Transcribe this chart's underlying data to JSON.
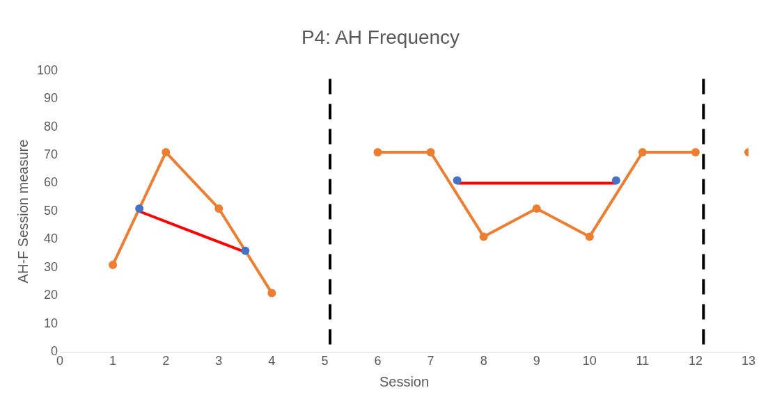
{
  "chart_data": {
    "type": "line",
    "title": "P4: AH Frequency",
    "xlabel": "Session",
    "ylabel": "AH-F Session measure",
    "xlim": [
      0,
      13
    ],
    "xticks": [
      0,
      1,
      2,
      3,
      4,
      5,
      6,
      7,
      8,
      9,
      10,
      11,
      12,
      13
    ],
    "ylim": [
      0,
      100
    ],
    "yticks": [
      0,
      10,
      20,
      30,
      40,
      50,
      60,
      70,
      80,
      90,
      100
    ],
    "grid": false,
    "legend": false,
    "marker": "circle",
    "line_style": "solid",
    "series": [
      {
        "type": "line",
        "color": "#ed7d31",
        "x": [
          1,
          2,
          3,
          4,
          5,
          6,
          7,
          8,
          9,
          10,
          11,
          12,
          12.5,
          13
        ],
        "values": [
          31,
          71,
          51,
          21,
          null,
          71,
          71,
          41,
          51,
          41,
          71,
          71,
          null,
          71
        ]
      },
      {
        "type": "line",
        "color": "#ff0000",
        "marker": "none",
        "x": [
          1.5,
          3.5
        ],
        "values": [
          50,
          35.5
        ]
      },
      {
        "type": "line",
        "color": "#ff0000",
        "marker": "none",
        "x": [
          7.5,
          10.5
        ],
        "values": [
          60,
          60
        ]
      },
      {
        "type": "scatter",
        "color": "#4472c4",
        "x": [
          1.5,
          3.5,
          7.5,
          10.5
        ],
        "values": [
          51,
          36,
          61,
          61
        ]
      }
    ],
    "ref_lines": [
      {
        "axis": "x",
        "value": 5.1,
        "color": "#000000",
        "line_style": "dashed"
      },
      {
        "axis": "x",
        "value": 12.15,
        "color": "#000000",
        "line_style": "dashed"
      }
    ]
  }
}
